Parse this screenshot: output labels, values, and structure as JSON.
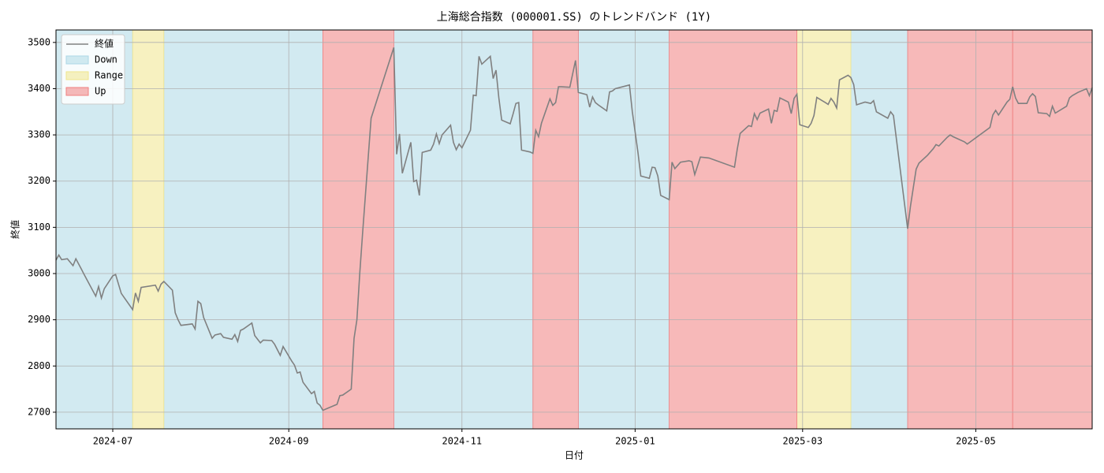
{
  "chart_data": {
    "type": "line",
    "title": "上海総合指数 (000001.SS) のトレンドバンド (1Y)",
    "x_label": "日付",
    "y_label": "終値",
    "xlim": [
      "2024-06-11",
      "2025-06-11"
    ],
    "xticks": [
      {
        "value": "2024-07-01",
        "label": "2024-07"
      },
      {
        "value": "2024-09-01",
        "label": "2024-09"
      },
      {
        "value": "2024-11-01",
        "label": "2024-11"
      },
      {
        "value": "2025-01-01",
        "label": "2025-01"
      },
      {
        "value": "2025-03-01",
        "label": "2025-03"
      },
      {
        "value": "2025-05-01",
        "label": "2025-05"
      }
    ],
    "ylim": [
      2664,
      3527
    ],
    "yticks": [
      2700,
      2800,
      2900,
      3000,
      3100,
      3200,
      3300,
      3400,
      3500
    ],
    "grid": true,
    "legend": "upper left",
    "series": [
      {
        "name": "終値",
        "color": "#808080",
        "x": [
          "2024-06-11",
          "2024-06-12",
          "2024-06-13",
          "2024-06-15",
          "2024-06-17",
          "2024-06-18",
          "2024-06-20",
          "2024-06-21",
          "2024-06-25",
          "2024-06-26",
          "2024-06-27",
          "2024-06-28",
          "2024-07-01",
          "2024-07-02",
          "2024-07-04",
          "2024-07-08",
          "2024-07-09",
          "2024-07-10",
          "2024-07-11",
          "2024-07-16",
          "2024-07-17",
          "2024-07-18",
          "2024-07-19",
          "2024-07-22",
          "2024-07-23",
          "2024-07-24",
          "2024-07-25",
          "2024-07-29",
          "2024-07-30",
          "2024-07-31",
          "2024-08-01",
          "2024-08-02",
          "2024-08-05",
          "2024-08-06",
          "2024-08-08",
          "2024-08-09",
          "2024-08-12",
          "2024-08-13",
          "2024-08-14",
          "2024-08-15",
          "2024-08-16",
          "2024-08-19",
          "2024-08-20",
          "2024-08-22",
          "2024-08-23",
          "2024-08-26",
          "2024-08-27",
          "2024-08-29",
          "2024-08-30",
          "2024-09-02",
          "2024-09-03",
          "2024-09-04",
          "2024-09-05",
          "2024-09-06",
          "2024-09-09",
          "2024-09-10",
          "2024-09-11",
          "2024-09-12",
          "2024-09-13",
          "2024-09-18",
          "2024-09-19",
          "2024-09-20",
          "2024-09-23",
          "2024-09-24",
          "2024-09-25",
          "2024-09-26",
          "2024-09-27",
          "2024-09-30",
          "2024-10-08",
          "2024-10-09",
          "2024-10-10",
          "2024-10-11",
          "2024-10-14",
          "2024-10-15",
          "2024-10-16",
          "2024-10-17",
          "2024-10-18",
          "2024-10-21",
          "2024-10-22",
          "2024-10-23",
          "2024-10-24",
          "2024-10-25",
          "2024-10-28",
          "2024-10-29",
          "2024-10-30",
          "2024-10-31",
          "2024-11-01",
          "2024-11-04",
          "2024-11-05",
          "2024-11-06",
          "2024-11-07",
          "2024-11-08",
          "2024-11-11",
          "2024-11-12",
          "2024-11-13",
          "2024-11-14",
          "2024-11-15",
          "2024-11-18",
          "2024-11-19",
          "2024-11-20",
          "2024-11-21",
          "2024-11-22",
          "2024-11-25",
          "2024-11-26",
          "2024-11-27",
          "2024-11-28",
          "2024-11-29",
          "2024-12-02",
          "2024-12-03",
          "2024-12-04",
          "2024-12-05",
          "2024-12-06",
          "2024-12-09",
          "2024-12-10",
          "2024-12-11",
          "2024-12-12",
          "2024-12-15",
          "2024-12-16",
          "2024-12-17",
          "2024-12-18",
          "2024-12-19",
          "2024-12-22",
          "2024-12-23",
          "2024-12-24",
          "2024-12-25",
          "2024-12-30",
          "2024-12-31",
          "2025-01-02",
          "2025-01-03",
          "2025-01-06",
          "2025-01-07",
          "2025-01-08",
          "2025-01-09",
          "2025-01-10",
          "2025-01-13",
          "2025-01-14",
          "2025-01-15",
          "2025-01-17",
          "2025-01-20",
          "2025-01-21",
          "2025-01-22",
          "2025-01-24",
          "2025-01-27",
          "2025-02-05",
          "2025-02-06",
          "2025-02-07",
          "2025-02-10",
          "2025-02-11",
          "2025-02-12",
          "2025-02-13",
          "2025-02-14",
          "2025-02-17",
          "2025-02-18",
          "2025-02-19",
          "2025-02-20",
          "2025-02-21",
          "2025-02-24",
          "2025-02-25",
          "2025-02-26",
          "2025-02-27",
          "2025-02-28",
          "2025-03-03",
          "2025-03-04",
          "2025-03-05",
          "2025-03-06",
          "2025-03-09",
          "2025-03-10",
          "2025-03-11",
          "2025-03-12",
          "2025-03-13",
          "2025-03-14",
          "2025-03-17",
          "2025-03-18",
          "2025-03-19",
          "2025-03-20",
          "2025-03-23",
          "2025-03-25",
          "2025-03-26",
          "2025-03-27",
          "2025-03-31",
          "2025-04-01",
          "2025-04-02",
          "2025-04-07",
          "2025-04-08",
          "2025-04-09",
          "2025-04-10",
          "2025-04-11",
          "2025-04-14",
          "2025-04-16",
          "2025-04-17",
          "2025-04-18",
          "2025-04-21",
          "2025-04-22",
          "2025-04-23",
          "2025-04-27",
          "2025-04-28",
          "2025-05-06",
          "2025-05-07",
          "2025-05-08",
          "2025-05-09",
          "2025-05-12",
          "2025-05-13",
          "2025-05-14",
          "2025-05-15",
          "2025-05-16",
          "2025-05-19",
          "2025-05-20",
          "2025-05-21",
          "2025-05-22",
          "2025-05-23",
          "2025-05-26",
          "2025-05-27",
          "2025-05-28",
          "2025-05-29",
          "2025-06-02",
          "2025-06-03",
          "2025-06-04",
          "2025-06-06",
          "2025-06-09",
          "2025-06-10",
          "2025-06-11"
        ],
        "values": [
          3029,
          3040,
          3030,
          3032,
          3017,
          3032,
          3009,
          2997,
          2951,
          2972,
          2947,
          2967,
          2995,
          2998,
          2957,
          2922,
          2958,
          2940,
          2970,
          2975,
          2962,
          2977,
          2983,
          2964,
          2915,
          2900,
          2888,
          2891,
          2880,
          2940,
          2935,
          2905,
          2860,
          2867,
          2870,
          2862,
          2858,
          2868,
          2853,
          2877,
          2880,
          2893,
          2866,
          2850,
          2856,
          2855,
          2847,
          2823,
          2842,
          2811,
          2802,
          2785,
          2787,
          2765,
          2740,
          2745,
          2720,
          2715,
          2704,
          2717,
          2736,
          2737,
          2750,
          2860,
          2900,
          3000,
          3087,
          3336,
          3489,
          3258,
          3302,
          3217,
          3284,
          3199,
          3202,
          3169,
          3262,
          3267,
          3280,
          3302,
          3281,
          3300,
          3321,
          3284,
          3268,
          3280,
          3272,
          3310,
          3386,
          3385,
          3470,
          3453,
          3470,
          3422,
          3440,
          3380,
          3332,
          3324,
          3345,
          3368,
          3370,
          3267,
          3263,
          3260,
          3310,
          3296,
          3325,
          3378,
          3364,
          3370,
          3404,
          3404,
          3403,
          3432,
          3461,
          3392,
          3387,
          3360,
          3382,
          3370,
          3365,
          3352,
          3393,
          3395,
          3400,
          3408,
          3351,
          3262,
          3211,
          3206,
          3230,
          3229,
          3211,
          3169,
          3160,
          3241,
          3227,
          3241,
          3244,
          3242,
          3214,
          3252,
          3250,
          3230,
          3270,
          3303,
          3320,
          3318,
          3346,
          3333,
          3347,
          3356,
          3325,
          3353,
          3351,
          3380,
          3371,
          3346,
          3379,
          3388,
          3322,
          3316,
          3325,
          3342,
          3381,
          3370,
          3366,
          3379,
          3371,
          3358,
          3419,
          3429,
          3424,
          3409,
          3365,
          3371,
          3368,
          3374,
          3350,
          3336,
          3350,
          3342,
          3097,
          3146,
          3186,
          3226,
          3239,
          3256,
          3270,
          3279,
          3276,
          3295,
          3300,
          3296,
          3285,
          3280,
          3316,
          3343,
          3353,
          3343,
          3371,
          3377,
          3404,
          3380,
          3368,
          3368,
          3382,
          3389,
          3383,
          3348,
          3346,
          3340,
          3362,
          3347,
          3362,
          3380,
          3385,
          3392,
          3400,
          3385,
          3402
        ]
      }
    ],
    "bands": [
      {
        "name": "Down",
        "color": "lightblue",
        "ranges": [
          [
            "2024-06-11",
            "2024-07-08"
          ],
          [
            "2024-07-19",
            "2024-09-13"
          ],
          [
            "2024-10-08",
            "2024-11-26"
          ],
          [
            "2024-12-12",
            "2025-01-13"
          ],
          [
            "2025-03-18",
            "2025-04-07"
          ]
        ]
      },
      {
        "name": "Range",
        "color": "khaki",
        "ranges": [
          [
            "2024-07-08",
            "2024-07-19"
          ],
          [
            "2025-02-27",
            "2025-03-18"
          ]
        ]
      },
      {
        "name": "Up",
        "color": "lightcoral",
        "ranges": [
          [
            "2024-09-13",
            "2024-10-08"
          ],
          [
            "2024-11-26",
            "2024-12-12"
          ],
          [
            "2025-01-13",
            "2025-02-27"
          ],
          [
            "2025-04-07",
            "2025-05-14"
          ],
          [
            "2025-05-14",
            "2025-06-11"
          ]
        ]
      }
    ]
  }
}
